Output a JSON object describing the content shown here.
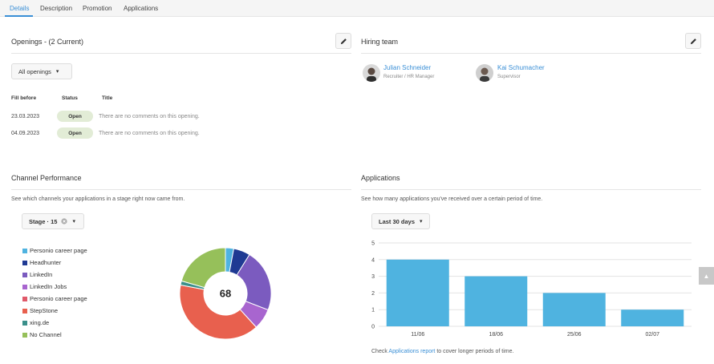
{
  "tabs": [
    "Details",
    "Description",
    "Promotion",
    "Applications"
  ],
  "openings": {
    "title": "Openings - (2 Current)",
    "filter_label": "All openings",
    "columns": [
      "Fill before",
      "Status",
      "Title"
    ],
    "rows": [
      {
        "fill_before": "23.03.2023",
        "status": "Open",
        "title": "There are no comments on this opening."
      },
      {
        "fill_before": "04.09.2023",
        "status": "Open",
        "title": "There are no comments on this opening."
      }
    ]
  },
  "hiring_team": {
    "title": "Hiring team",
    "members": [
      {
        "name": "Julian Schneider",
        "role": "Recruiter / HR Manager"
      },
      {
        "name": "Kai Schumacher",
        "role": "Supervisor"
      }
    ]
  },
  "channel_performance": {
    "title": "Channel Performance",
    "description": "See which channels your applications in a stage right now came from.",
    "stage_filter": {
      "label": "Stage · 15",
      "clear_icon": "close-circle-icon"
    },
    "legend": [
      {
        "label": "Personio career page",
        "color": "#4fb3e0"
      },
      {
        "label": "Headhunter",
        "color": "#1f3a93"
      },
      {
        "label": "LinkedIn",
        "color": "#7b5bbf"
      },
      {
        "label": "LinkedIn Jobs",
        "color": "#a865cf"
      },
      {
        "label": "Personio career page",
        "color": "#e05a6a"
      },
      {
        "label": "StepStone",
        "color": "#e8604e"
      },
      {
        "label": "xing.de",
        "color": "#3a8f8a"
      },
      {
        "label": "No Channel",
        "color": "#96c05a"
      }
    ]
  },
  "applications": {
    "title": "Applications",
    "description": "See how many applications you've received over a certain period of time.",
    "range_filter": "Last 30 days",
    "footer_prefix": "Check ",
    "footer_link": "Applications report",
    "footer_suffix": " to cover longer periods of time."
  },
  "chart_data": [
    {
      "type": "pie",
      "center_label": "68",
      "categories": [
        "Personio career page",
        "Headhunter",
        "LinkedIn",
        "LinkedIn Jobs",
        "Personio career page",
        "StepStone",
        "xing.de",
        "No Channel"
      ],
      "values": [
        2,
        4,
        15,
        5,
        0,
        27,
        1,
        14
      ],
      "colors": [
        "#4fb3e0",
        "#1f3a93",
        "#7b5bbf",
        "#a865cf",
        "#e05a6a",
        "#e8604e",
        "#3a8f8a",
        "#96c05a"
      ]
    },
    {
      "type": "bar",
      "categories": [
        "11/06",
        "18/06",
        "25/06",
        "02/07"
      ],
      "values": [
        4,
        3,
        2,
        1
      ],
      "ylim": [
        0,
        5
      ],
      "yticks": [
        0,
        1,
        2,
        3,
        4,
        5
      ],
      "grid": true,
      "color": "#4fb3e0"
    }
  ]
}
